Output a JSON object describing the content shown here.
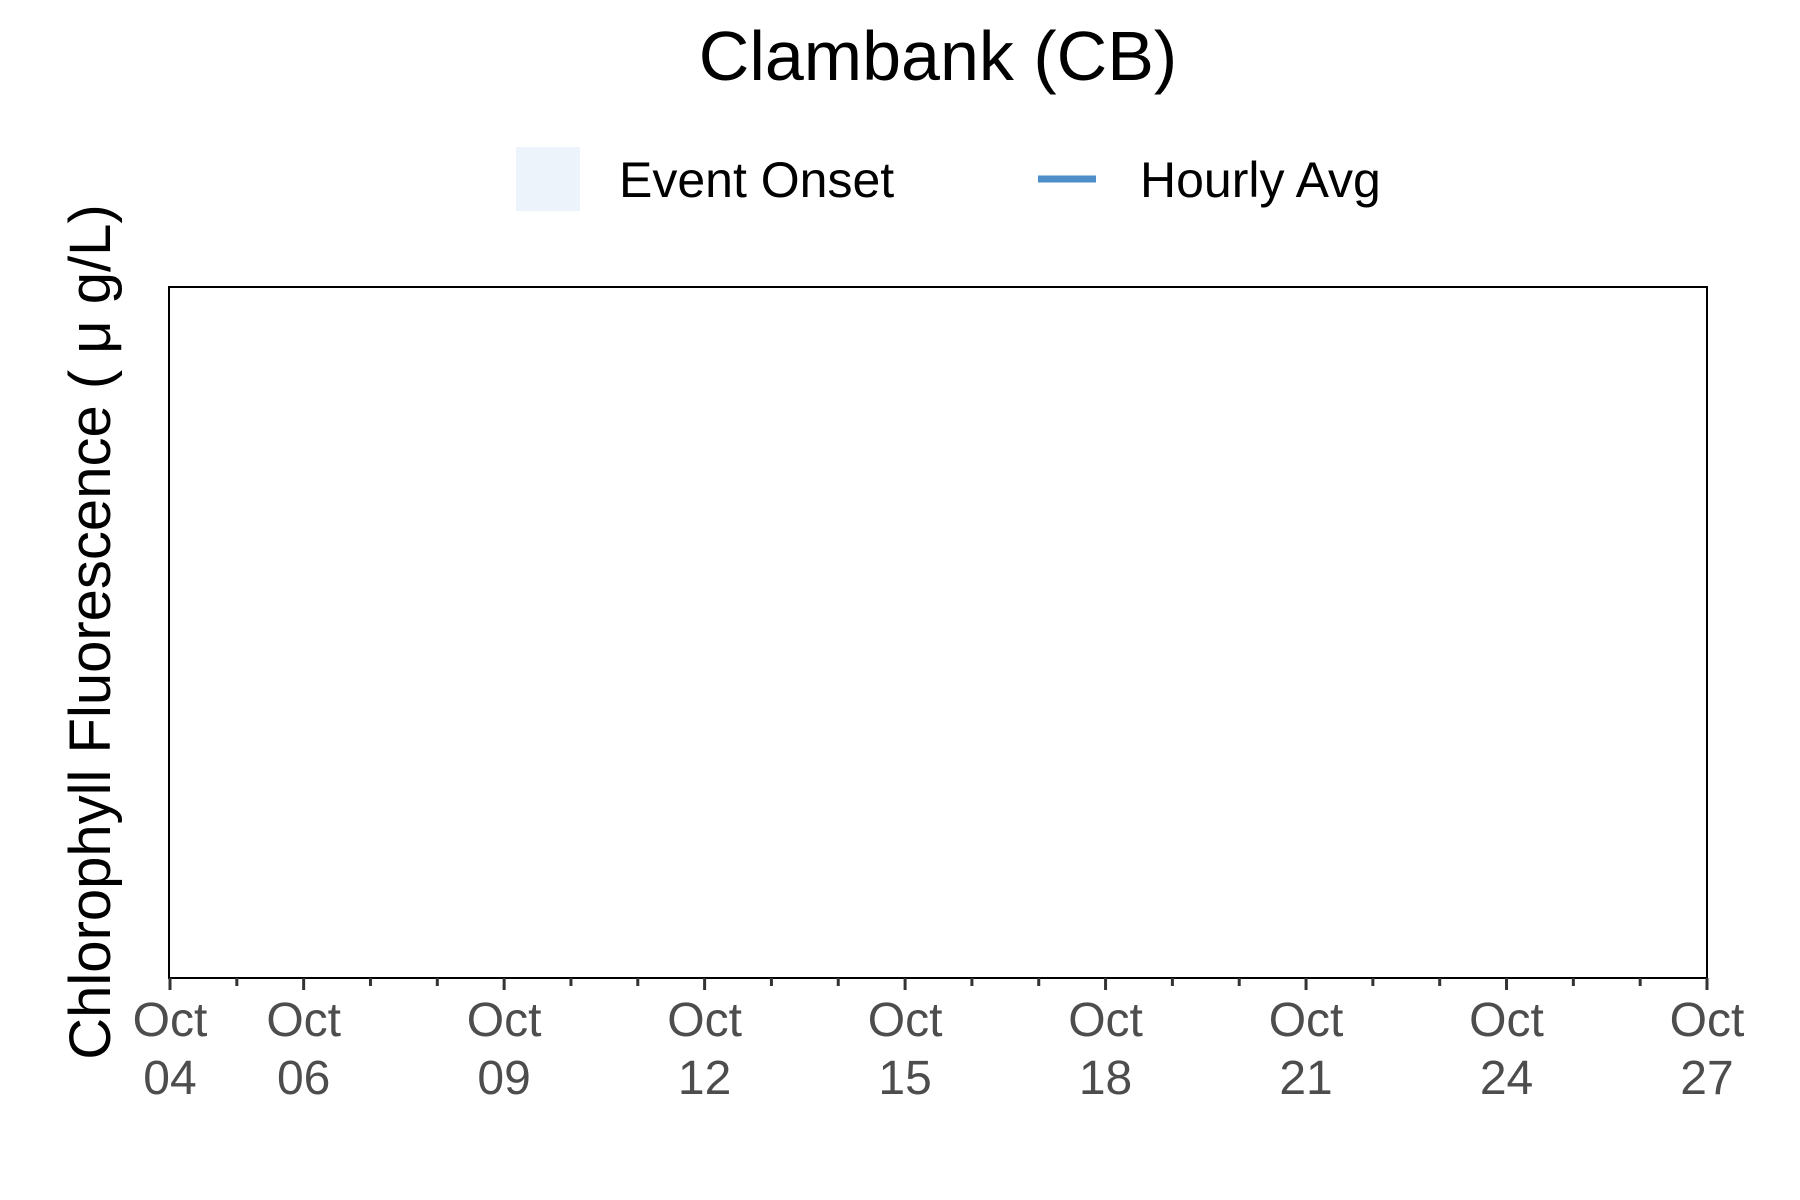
{
  "chart_data": {
    "type": "line",
    "title": "Clambank (CB)",
    "xlabel": "",
    "ylabel": "Chlorophyll Fluorescence ( μ g/L)",
    "x_range": [
      "2023-10-04",
      "2023-10-27"
    ],
    "x_ticks": [
      {
        "date": "2023-10-04",
        "label": [
          "Oct",
          "04"
        ]
      },
      {
        "date": "2023-10-06",
        "label": [
          "Oct",
          "06"
        ]
      },
      {
        "date": "2023-10-09",
        "label": [
          "Oct",
          "09"
        ]
      },
      {
        "date": "2023-10-12",
        "label": [
          "Oct",
          "12"
        ]
      },
      {
        "date": "2023-10-15",
        "label": [
          "Oct",
          "15"
        ]
      },
      {
        "date": "2023-10-18",
        "label": [
          "Oct",
          "18"
        ]
      },
      {
        "date": "2023-10-21",
        "label": [
          "Oct",
          "21"
        ]
      },
      {
        "date": "2023-10-24",
        "label": [
          "Oct",
          "24"
        ]
      },
      {
        "date": "2023-10-27",
        "label": [
          "Oct",
          "27"
        ]
      }
    ],
    "minor_ticks": [
      "2023-10-05",
      "2023-10-07",
      "2023-10-08",
      "2023-10-10",
      "2023-10-11",
      "2023-10-13",
      "2023-10-14",
      "2023-10-16",
      "2023-10-17",
      "2023-10-19",
      "2023-10-20",
      "2023-10-22",
      "2023-10-23",
      "2023-10-25",
      "2023-10-26"
    ],
    "legend": {
      "placement": "top",
      "items": [
        {
          "name": "Event Onset",
          "kind": "fill",
          "color": "#ecf3fb"
        },
        {
          "name": "Hourly Avg",
          "kind": "line",
          "color": "#4e8fc9"
        }
      ]
    },
    "series": [
      {
        "name": "Hourly Avg",
        "color": "#4e8fc9",
        "points": []
      }
    ],
    "events": [],
    "grid": false
  }
}
